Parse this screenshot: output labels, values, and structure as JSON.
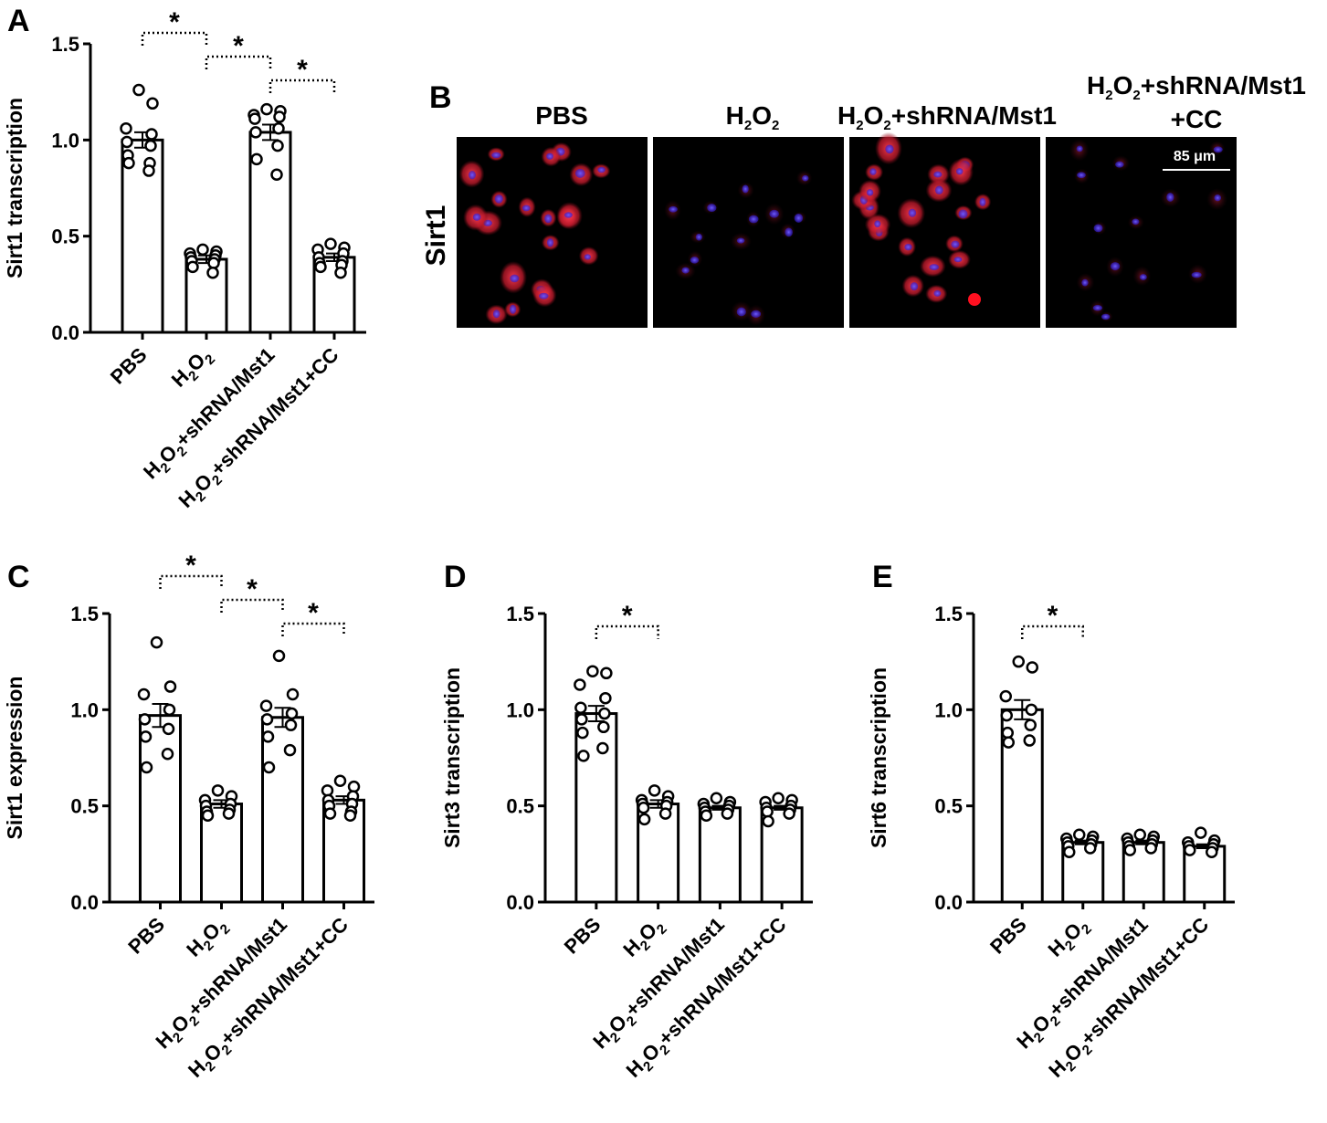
{
  "panels": {
    "A": "A",
    "B": "B",
    "C": "C",
    "D": "D",
    "E": "E"
  },
  "categories": [
    "PBS",
    "H2O2",
    "H2O2+shRNA/Mst1",
    "H2O2+shRNA/Mst1+CC"
  ],
  "cat_parts": [
    [
      {
        "t": "PBS"
      }
    ],
    [
      {
        "t": "H"
      },
      {
        "t": "2",
        "sub": true
      },
      {
        "t": "O"
      },
      {
        "t": "2",
        "sub": true
      }
    ],
    [
      {
        "t": "H"
      },
      {
        "t": "2",
        "sub": true
      },
      {
        "t": "O"
      },
      {
        "t": "2",
        "sub": true
      },
      {
        "t": "+shRNA/Mst1"
      }
    ],
    [
      {
        "t": "H"
      },
      {
        "t": "2",
        "sub": true
      },
      {
        "t": "O"
      },
      {
        "t": "2",
        "sub": true
      },
      {
        "t": "+shRNA/Mst1+CC"
      }
    ]
  ],
  "chart_data": [
    {
      "panel": "A",
      "type": "bar",
      "ylabel": "Sirt1 transcription",
      "ylim": [
        0,
        1.5
      ],
      "yticks": [
        "0.0",
        "0.5",
        "1.0",
        "1.5"
      ],
      "categories": [
        "PBS",
        "H2O2",
        "H2O2+shRNA/Mst1",
        "H2O2+shRNA/Mst1+CC"
      ],
      "values": [
        1.0,
        0.38,
        1.04,
        0.39
      ],
      "sem": [
        0.04,
        0.02,
        0.04,
        0.02
      ],
      "points": [
        [
          1.26,
          1.19,
          1.06,
          1.03,
          0.99,
          0.97,
          0.92,
          0.88,
          0.88,
          0.84
        ],
        [
          0.43,
          0.42,
          0.41,
          0.4,
          0.39,
          0.38,
          0.37,
          0.36,
          0.34,
          0.31
        ],
        [
          1.16,
          1.15,
          1.13,
          1.12,
          1.11,
          1.06,
          1.04,
          0.97,
          0.9,
          0.82
        ],
        [
          0.46,
          0.44,
          0.43,
          0.41,
          0.39,
          0.37,
          0.36,
          0.35,
          0.34,
          0.31
        ]
      ],
      "significance": [
        [
          0,
          1,
          "*"
        ],
        [
          1,
          2,
          "*"
        ],
        [
          2,
          3,
          "*"
        ]
      ]
    },
    {
      "panel": "C",
      "type": "bar",
      "ylabel": "Sirt1 expression",
      "ylim": [
        0,
        1.5
      ],
      "yticks": [
        "0.0",
        "0.5",
        "1.0",
        "1.5"
      ],
      "categories": [
        "PBS",
        "H2O2",
        "H2O2+shRNA/Mst1",
        "H2O2+shRNA/Mst1+CC"
      ],
      "values": [
        0.97,
        0.51,
        0.96,
        0.53
      ],
      "sem": [
        0.06,
        0.02,
        0.05,
        0.02
      ],
      "points": [
        [
          1.35,
          1.12,
          1.08,
          1.0,
          0.95,
          0.9,
          0.86,
          0.77,
          0.7
        ],
        [
          0.58,
          0.55,
          0.53,
          0.51,
          0.5,
          0.48,
          0.47,
          0.46,
          0.45
        ],
        [
          1.28,
          1.08,
          1.02,
          0.98,
          0.95,
          0.92,
          0.86,
          0.79,
          0.7
        ],
        [
          0.63,
          0.6,
          0.58,
          0.55,
          0.53,
          0.51,
          0.5,
          0.47,
          0.46,
          0.45
        ]
      ],
      "significance": [
        [
          0,
          1,
          "*"
        ],
        [
          1,
          2,
          "*"
        ],
        [
          2,
          3,
          "*"
        ]
      ]
    },
    {
      "panel": "D",
      "type": "bar",
      "ylabel": "Sirt3 transcription",
      "ylim": [
        0,
        1.5
      ],
      "yticks": [
        "0.0",
        "0.5",
        "1.0",
        "1.5"
      ],
      "categories": [
        "PBS",
        "H2O2",
        "H2O2+shRNA/Mst1",
        "H2O2+shRNA/Mst1+CC"
      ],
      "values": [
        0.98,
        0.51,
        0.49,
        0.49
      ],
      "sem": [
        0.04,
        0.02,
        0.01,
        0.01
      ],
      "points": [
        [
          1.2,
          1.19,
          1.13,
          1.06,
          1.01,
          0.98,
          0.95,
          0.91,
          0.88,
          0.8,
          0.76
        ],
        [
          0.58,
          0.55,
          0.53,
          0.52,
          0.51,
          0.5,
          0.49,
          0.46,
          0.43
        ],
        [
          0.54,
          0.52,
          0.51,
          0.5,
          0.49,
          0.48,
          0.47,
          0.46,
          0.45
        ],
        [
          0.54,
          0.53,
          0.52,
          0.5,
          0.49,
          0.48,
          0.47,
          0.46,
          0.42
        ]
      ],
      "significance": [
        [
          0,
          1,
          "*"
        ]
      ]
    },
    {
      "panel": "E",
      "type": "bar",
      "ylabel": "Sirt6 transcription",
      "ylim": [
        0,
        1.5
      ],
      "yticks": [
        "0.0",
        "0.5",
        "1.0",
        "1.5"
      ],
      "categories": [
        "PBS",
        "H2O2",
        "H2O2+shRNA/Mst1",
        "H2O2+shRNA/Mst1+CC"
      ],
      "values": [
        1.0,
        0.31,
        0.31,
        0.29
      ],
      "sem": [
        0.05,
        0.01,
        0.01,
        0.01
      ],
      "points": [
        [
          1.25,
          1.22,
          1.07,
          1.0,
          0.97,
          0.92,
          0.88,
          0.84,
          0.83
        ],
        [
          0.35,
          0.34,
          0.33,
          0.32,
          0.31,
          0.3,
          0.29,
          0.28,
          0.26
        ],
        [
          0.35,
          0.34,
          0.33,
          0.32,
          0.31,
          0.3,
          0.29,
          0.28,
          0.27
        ],
        [
          0.36,
          0.32,
          0.31,
          0.3,
          0.29,
          0.28,
          0.27,
          0.26
        ]
      ],
      "significance": [
        [
          0,
          1,
          "*"
        ]
      ]
    }
  ],
  "micrograph": {
    "row_label": "Sirt1",
    "columns": [
      "PBS",
      "H2O2",
      "H2O2+shRNA/Mst1",
      "H2O2+shRNA/Mst1+CC"
    ],
    "scale_bar": "85 μm",
    "stain_colors": {
      "cytoplasm": "#e0283c",
      "nucleus": "#3a2cff",
      "background": "#000000"
    }
  }
}
